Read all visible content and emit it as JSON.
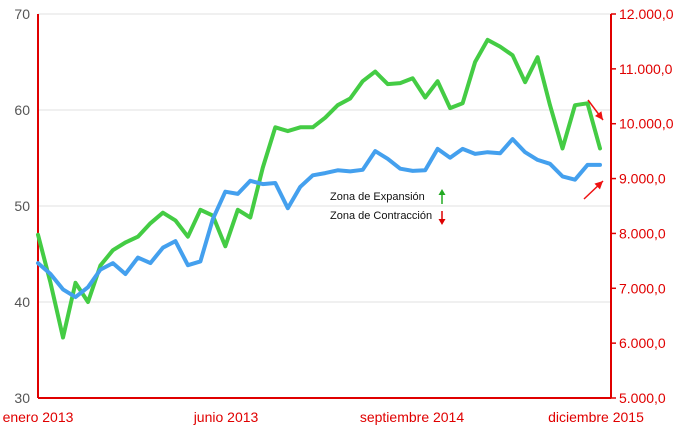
{
  "chart_data": {
    "type": "line",
    "title": "",
    "xlabel": "",
    "ylabel": "",
    "x_tick_labels": [
      "enero 2013",
      "junio 2013",
      "septiembre 2014",
      "diciembre 2015"
    ],
    "y_left": {
      "range": [
        30,
        70
      ],
      "ticks": [
        "30",
        "40",
        "50",
        "60",
        "70"
      ]
    },
    "y_right": {
      "range": [
        5000,
        12000
      ],
      "ticks": [
        "5.000,0",
        "6.000,0",
        "7.000,0",
        "8.000,0",
        "9.000,0",
        "10.000,0",
        "11.000,0",
        "12.000,0"
      ]
    },
    "grid": true,
    "legend": {
      "placement": "center",
      "entries": [
        {
          "label": "Zona de Expansión",
          "arrow": "up",
          "color": "#22aa22"
        },
        {
          "label": "Zona de Contracción",
          "arrow": "down",
          "color": "#dd0000"
        }
      ]
    },
    "series": [
      {
        "axis": "left",
        "color": "#44cc44",
        "values": [
          47.0,
          42.0,
          36.3,
          42.0,
          40.0,
          43.8,
          45.4,
          46.2,
          46.8,
          48.2,
          49.3,
          48.5,
          46.8,
          49.6,
          49.0,
          45.8,
          49.6,
          48.8,
          54.0,
          58.2,
          57.8,
          58.2,
          58.2,
          59.2,
          60.5,
          61.2,
          63.0,
          64.0,
          62.7,
          62.8,
          63.3,
          61.3,
          63.0,
          60.2,
          60.7,
          65.0,
          67.3,
          66.6,
          65.7,
          62.9,
          65.5,
          60.5,
          56.0,
          60.5,
          60.7,
          56.0
        ]
      },
      {
        "axis": "right",
        "color": "#44a0ee",
        "values": [
          7460,
          7260,
          6980,
          6840,
          7020,
          7340,
          7460,
          7260,
          7560,
          7460,
          7740,
          7860,
          7420,
          7490,
          8260,
          8760,
          8720,
          8960,
          8900,
          8920,
          8460,
          8850,
          9060,
          9100,
          9150,
          9130,
          9160,
          9500,
          9360,
          9180,
          9140,
          9150,
          9540,
          9380,
          9540,
          9450,
          9480,
          9460,
          9720,
          9480,
          9340,
          9270,
          9040,
          8980,
          9250,
          9250
        ]
      }
    ],
    "annotations": [
      {
        "shape": "arrow",
        "direction": "down-right",
        "color": "#ee1111"
      },
      {
        "shape": "arrow",
        "direction": "up-right",
        "color": "#ee1111"
      }
    ]
  }
}
